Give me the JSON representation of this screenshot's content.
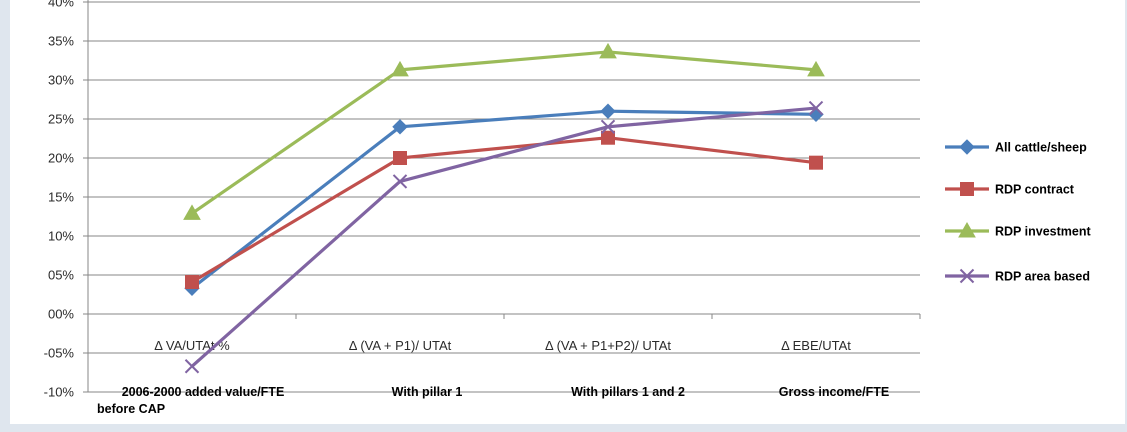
{
  "chart_data": {
    "type": "line",
    "categories": [
      "Δ VA/UTAt %",
      "Δ (VA + P1)/ UTAt",
      "Δ (VA + P1+P2)/ UTAt",
      "Δ EBE/UTAt"
    ],
    "category_sublabels": [
      [
        "2006-2000 added value/FTE",
        "before CAP"
      ],
      [
        "With pillar 1"
      ],
      [
        "With pillars 1 and 2"
      ],
      [
        "Gross income/FTE"
      ]
    ],
    "y_tick_labels": [
      "40%",
      "35%",
      "30%",
      "25%",
      "20%",
      "15%",
      "10%",
      "05%",
      "00%",
      "-05%",
      "-10%"
    ],
    "ylim": [
      -10,
      40
    ],
    "y_unit": "%",
    "grid": true,
    "legend_position": "right",
    "series": [
      {
        "name": "All cattle/sheep",
        "values": [
          3.3,
          24.0,
          26.0,
          25.6
        ],
        "color": "#4a7ebb",
        "marker": "diamond"
      },
      {
        "name": "RDP contract",
        "values": [
          4.1,
          20.0,
          22.6,
          19.4
        ],
        "color": "#c0504d",
        "marker": "square"
      },
      {
        "name": "RDP investment",
        "values": [
          12.9,
          31.3,
          33.6,
          31.3
        ],
        "color": "#9bbb59",
        "marker": "triangle"
      },
      {
        "name": "RDP area based",
        "values": [
          -6.7,
          17.0,
          24.0,
          26.4
        ],
        "color": "#8064a2",
        "marker": "x"
      }
    ]
  }
}
